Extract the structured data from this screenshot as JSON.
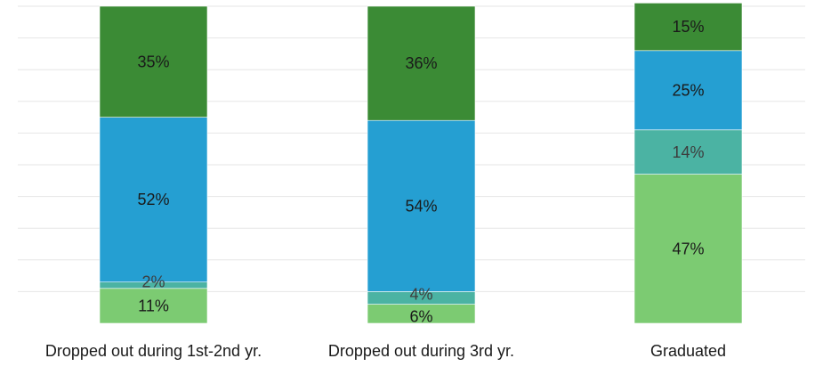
{
  "chart_data": {
    "type": "bar",
    "stacked": true,
    "normalized": true,
    "categories": [
      "Dropped out during 1st-2nd yr.",
      "Dropped out during 3rd yr.",
      "Graduated"
    ],
    "series": [
      {
        "values": [
          11,
          6,
          47
        ],
        "labels": [
          "11%",
          "6%",
          "47%"
        ],
        "color": "#7ccb72",
        "label_color": "#1a1a1a"
      },
      {
        "values": [
          2,
          4,
          14
        ],
        "labels": [
          "2%",
          "4%",
          "14%"
        ],
        "color": "#4bb3a3",
        "label_color": "#3d3d3d"
      },
      {
        "values": [
          52,
          54,
          25
        ],
        "labels": [
          "52%",
          "54%",
          "25%"
        ],
        "color": "#259fd2",
        "label_color": "#1a1a1a"
      },
      {
        "values": [
          35,
          36,
          15
        ],
        "labels": [
          "35%",
          "36%",
          "15%"
        ],
        "color": "#3b8b35",
        "label_color": "#1a1a1a"
      }
    ],
    "ylim": [
      0,
      100
    ],
    "grid": true,
    "grid_color": "#e6e6e6",
    "legend": "none",
    "title": "",
    "xlabel": "",
    "ylabel": ""
  }
}
